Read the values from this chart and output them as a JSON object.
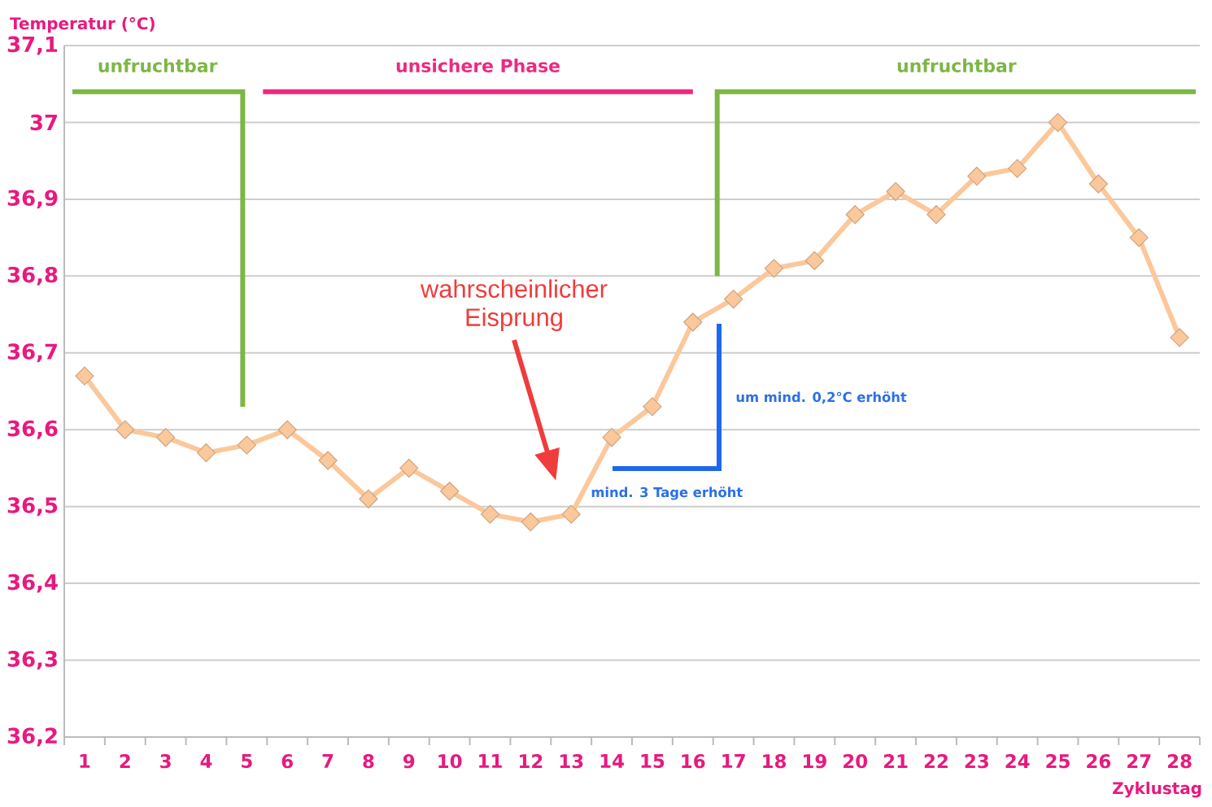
{
  "chart_data": {
    "type": "line",
    "xlabel": "Zyklustag",
    "ylabel": "Temperatur (°C)",
    "annotations": [
      "wahrscheinlicher Eisprung",
      "um mind. 0,2°C erhöht",
      "mind. 3 Tage erhöht"
    ],
    "x": [
      1,
      2,
      3,
      4,
      5,
      6,
      7,
      8,
      9,
      10,
      11,
      12,
      13,
      14,
      15,
      16,
      17,
      18,
      19,
      20,
      21,
      22,
      23,
      24,
      25,
      26,
      27,
      28
    ],
    "series": [
      {
        "values": [
          36.67,
          36.6,
          36.59,
          36.57,
          36.58,
          36.6,
          36.56,
          36.51,
          36.55,
          36.52,
          36.49,
          36.48,
          36.49,
          36.59,
          36.63,
          36.74,
          36.77,
          36.81,
          36.82,
          36.88,
          36.91,
          36.88,
          36.93,
          36.94,
          37.0,
          36.92,
          36.85,
          36.72
        ],
        "color": "#fbc89b"
      },
      {
        "name": "unfruchtbar",
        "x": [
          0.7,
          4.9,
          4.9
        ],
        "values": [
          37.04,
          37.04,
          36.63
        ],
        "color": "#7db646",
        "marker": "none"
      },
      {
        "name": "unsichere Phase",
        "x": [
          5.4,
          16.0
        ],
        "values": [
          37.04,
          37.04
        ],
        "color": "#ec2a80",
        "marker": "none"
      },
      {
        "name": "unfruchtbar",
        "x": [
          16.6,
          16.6,
          28.4
        ],
        "values": [
          36.8,
          37.04,
          37.04
        ],
        "color": "#7db646",
        "marker": "none"
      }
    ],
    "xlim": [
      0.5,
      28.5
    ],
    "xticks": [
      1,
      2,
      3,
      4,
      5,
      6,
      7,
      8,
      9,
      10,
      11,
      12,
      13,
      14,
      15,
      16,
      17,
      18,
      19,
      20,
      21,
      22,
      23,
      24,
      25,
      26,
      27,
      28
    ],
    "ylim": [
      36.2,
      37.1
    ],
    "yticks": [
      {
        "value": 36.2,
        "label": "36,2"
      },
      {
        "value": 36.3,
        "label": "36,3"
      },
      {
        "value": 36.4,
        "label": "36,4"
      },
      {
        "value": 36.5,
        "label": "36,5"
      },
      {
        "value": 36.6,
        "label": "36,6"
      },
      {
        "value": 36.7,
        "label": "36,7"
      },
      {
        "value": 36.8,
        "label": "36,8"
      },
      {
        "value": 36.9,
        "label": "36,9"
      },
      37,
      {
        "value": 37.1,
        "label": "37,1"
      }
    ],
    "grid": "y",
    "marker": "diamond"
  }
}
